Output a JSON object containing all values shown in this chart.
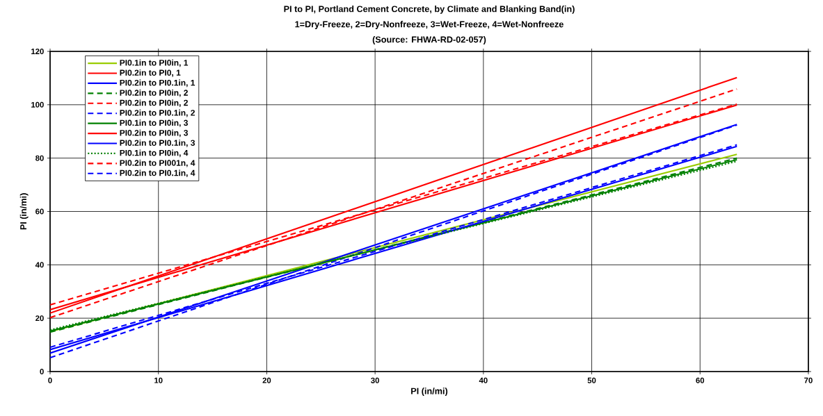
{
  "chart_data": {
    "type": "line",
    "title": "PI to PI, Portland Cement Concrete, by Climate and Blanking Band(in)",
    "subtitle": "1=Dry-Freeze, 2=Dry-Nonfreeze, 3=Wet-Freeze, 4=Wet-Nonfreeze",
    "annotations": [
      "(Source: FHWA-RD-02-057)"
    ],
    "xlabel": "PI (in/mi)",
    "ylabel": "PI (in/mi)",
    "xlim": [
      0,
      70
    ],
    "xticks": [
      0,
      10,
      20,
      30,
      40,
      50,
      60,
      70
    ],
    "ylim": [
      0,
      120
    ],
    "yticks": [
      0,
      20,
      40,
      60,
      80,
      100,
      120
    ],
    "grid": true,
    "legend": "top left",
    "marker": "none",
    "x": [
      0,
      63.4
    ],
    "series": [
      {
        "name": "PI0.1in to PI0in, 1",
        "color": "#99cc00",
        "values": [
          15,
          81.4
        ],
        "line_style": "solid"
      },
      {
        "name": "PI0.2in to PI0, 1",
        "color": "#ff0000",
        "values": [
          21.9,
          110.2
        ],
        "line_style": "solid"
      },
      {
        "name": "PI0.2in to PI0.1in, 1",
        "color": "#0000ff",
        "values": [
          6.9,
          92.6
        ],
        "line_style": "solid"
      },
      {
        "name": "PI0.2in to PI0in, 2",
        "color": "#008000",
        "values": [
          14.8,
          80.0
        ],
        "line_style": "dashed"
      },
      {
        "name": "PI0.2in to PI0in, 2",
        "color": "#ff0000",
        "values": [
          20.2,
          105.9
        ],
        "line_style": "dashed"
      },
      {
        "name": "PI0.2in to PI0.1in, 2",
        "color": "#0000ff",
        "values": [
          5.2,
          92.4
        ],
        "line_style": "dashed"
      },
      {
        "name": "PI0.1in to PI0in, 3",
        "color": "#008000",
        "values": [
          15.2,
          79.4
        ],
        "line_style": "solid"
      },
      {
        "name": "PI0.2in to PI0in, 3",
        "color": "#ff0000",
        "values": [
          23.2,
          99.9
        ],
        "line_style": "solid"
      },
      {
        "name": "PI0.2in to PI0.1in, 3",
        "color": "#0000ff",
        "values": [
          8.2,
          84.4
        ],
        "line_style": "solid"
      },
      {
        "name": "PI0.1in to PI0in, 4",
        "color": "#008000",
        "values": [
          15.6,
          78.8
        ],
        "line_style": "dotted"
      },
      {
        "name": "PI0.2in to PI001n, 4",
        "color": "#ff0000",
        "values": [
          25.0,
          100.2
        ],
        "line_style": "dashed"
      },
      {
        "name": "PI0.2in to PI0.1in, 4",
        "color": "#0000ff",
        "values": [
          9.1,
          85.0
        ],
        "line_style": "dashed"
      }
    ]
  }
}
